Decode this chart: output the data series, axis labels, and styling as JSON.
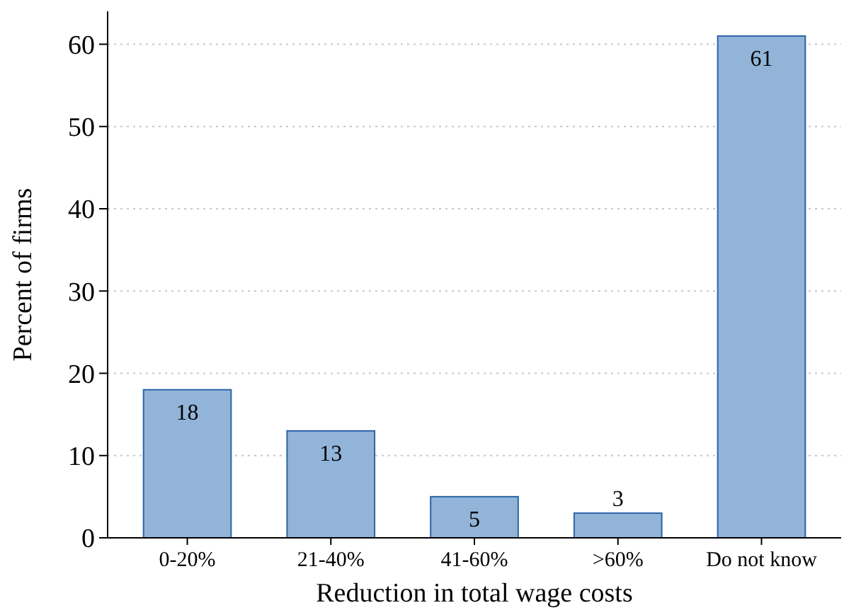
{
  "chart_data": {
    "type": "bar",
    "xlabel": "Reduction in total wage costs",
    "ylabel": "Percent of firms",
    "categories": [
      "0-20%",
      "21-40%",
      "41-60%",
      ">60%",
      "Do not know"
    ],
    "values": [
      18,
      13,
      5,
      3,
      61
    ],
    "color": "#92b4d9",
    "ylim": [
      0,
      64
    ],
    "yticks": [
      0,
      10,
      20,
      30,
      40,
      50,
      60
    ],
    "grid": "y",
    "data_labels": true
  }
}
